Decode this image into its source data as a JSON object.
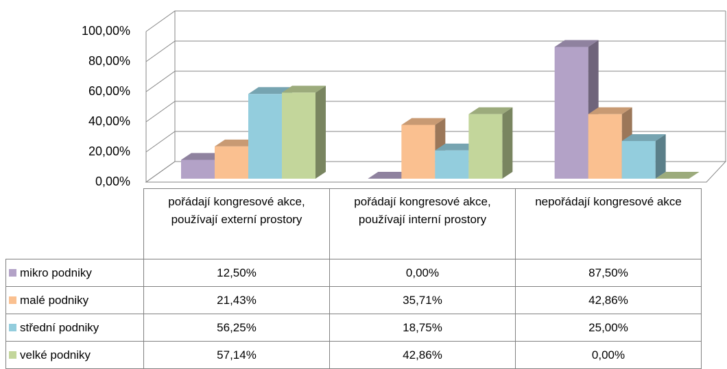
{
  "chart_data": {
    "type": "bar3d",
    "categories": [
      "pořádají kongresové akce, používají externí prostory",
      "pořádají kongresové akce, používají interní prostory",
      "nepořádají kongresové akce"
    ],
    "series": [
      {
        "name": "mikro podniky",
        "color": "#b3a2c7",
        "values": [
          12.5,
          0,
          87.5
        ],
        "value_labels": [
          "12,50%",
          "0,00%",
          "87,50%"
        ]
      },
      {
        "name": "malé podniky",
        "color": "#fac090",
        "values": [
          21.43,
          35.71,
          42.86
        ],
        "value_labels": [
          "21,43%",
          "35,71%",
          "42,86%"
        ]
      },
      {
        "name": "střední podniky",
        "color": "#93cddd",
        "values": [
          56.25,
          18.75,
          25
        ],
        "value_labels": [
          "56,25%",
          "18,75%",
          "25,00%"
        ]
      },
      {
        "name": "velké podniky",
        "color": "#c3d69b",
        "values": [
          57.14,
          42.86,
          0
        ],
        "value_labels": [
          "57,14%",
          "42,86%",
          "0,00%"
        ]
      }
    ],
    "ylim": [
      0,
      100
    ],
    "yticks": [
      {
        "value": 0,
        "label": "0,00%"
      },
      {
        "value": 20,
        "label": "20,00%"
      },
      {
        "value": 40,
        "label": "40,00%"
      },
      {
        "value": 60,
        "label": "60,00%"
      },
      {
        "value": 80,
        "label": "80,00%"
      },
      {
        "value": 100,
        "label": "100,00%"
      }
    ],
    "grid": true
  }
}
